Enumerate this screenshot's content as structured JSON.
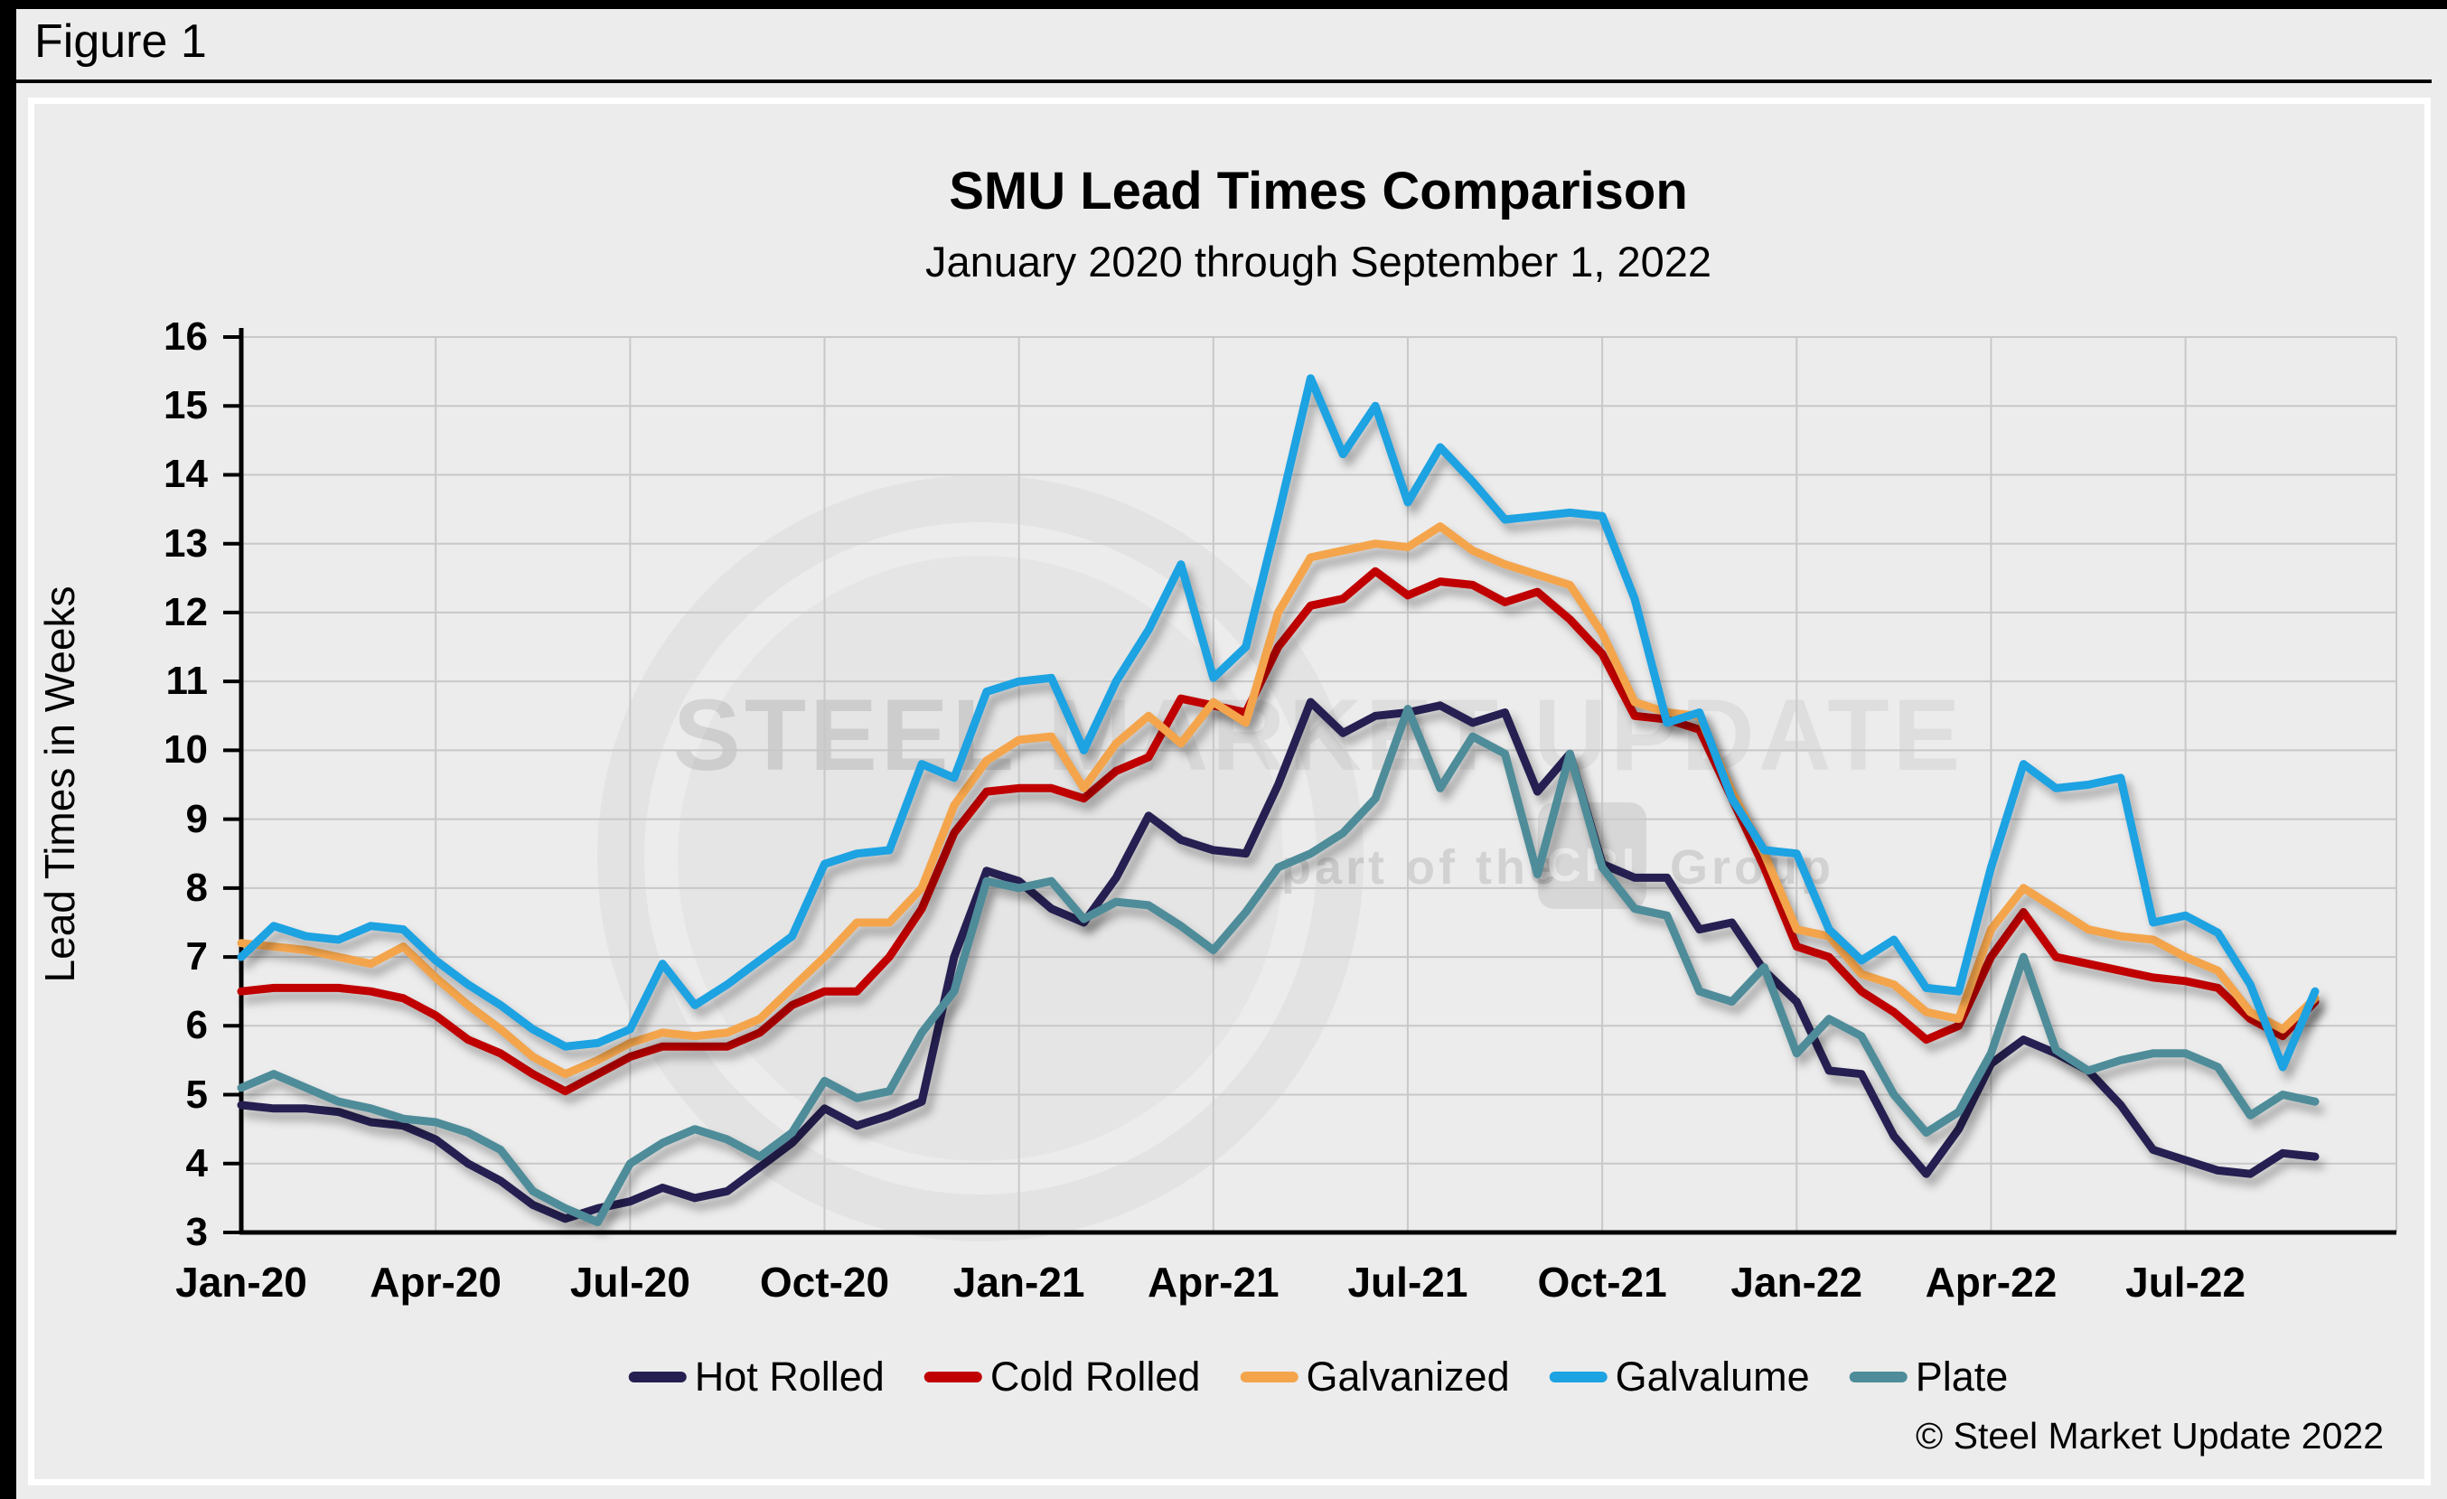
{
  "figure_label": "Figure 1",
  "chart": {
    "title": "SMU Lead Times Comparison",
    "subtitle": "January 2020 through September 1, 2022"
  },
  "y_axis": {
    "label": "Lead Times in Weeks",
    "min": 3,
    "max": 16,
    "step": 1,
    "tick_labels": [
      "3",
      "4",
      "5",
      "6",
      "7",
      "8",
      "9",
      "10",
      "11",
      "12",
      "13",
      "14",
      "15",
      "16"
    ]
  },
  "x_axis": {
    "tick_labels": [
      "Jan-20",
      "Apr-20",
      "Jul-20",
      "Oct-20",
      "Jan-21",
      "Apr-21",
      "Jul-21",
      "Oct-21",
      "Jan-22",
      "Apr-22",
      "Jul-22"
    ]
  },
  "legend": {
    "items": [
      {
        "label": "Hot Rolled",
        "color": "#252051"
      },
      {
        "label": "Cold Rolled",
        "color": "#C00000"
      },
      {
        "label": "Galvanized",
        "color": "#F4A54C"
      },
      {
        "label": "Galvalume",
        "color": "#1DA2E2"
      },
      {
        "label": "Plate",
        "color": "#4E8C99"
      }
    ]
  },
  "watermark": {
    "word1": "STEEL",
    "word2": " MARKET UPDATE",
    "tagline_prefix": "part of the",
    "badge": "CRU",
    "tagline_suffix": "Group"
  },
  "copyright": "© Steel Market Update 2022",
  "colors": {
    "background": "#ECECEC",
    "frame": "#FFFFFF",
    "gridline": "#C8C8C8",
    "axis": "#000000"
  },
  "chart_data": {
    "type": "line",
    "title": "SMU Lead Times Comparison",
    "ylabel": "Lead Times in Weeks",
    "ylim": [
      3,
      16
    ],
    "grid": true,
    "legend_position": "bottom",
    "x": [
      "2020-01-01",
      "2020-01-15",
      "2020-02-01",
      "2020-02-15",
      "2020-03-01",
      "2020-03-15",
      "2020-04-01",
      "2020-04-15",
      "2020-05-01",
      "2020-05-15",
      "2020-06-01",
      "2020-06-15",
      "2020-07-01",
      "2020-07-15",
      "2020-08-01",
      "2020-08-15",
      "2020-09-01",
      "2020-09-15",
      "2020-10-01",
      "2020-10-15",
      "2020-11-01",
      "2020-11-15",
      "2020-12-01",
      "2020-12-15",
      "2021-01-01",
      "2021-01-15",
      "2021-02-01",
      "2021-02-15",
      "2021-03-01",
      "2021-03-15",
      "2021-04-01",
      "2021-04-15",
      "2021-05-01",
      "2021-05-15",
      "2021-06-01",
      "2021-06-15",
      "2021-07-01",
      "2021-07-15",
      "2021-08-01",
      "2021-08-15",
      "2021-09-01",
      "2021-09-15",
      "2021-10-01",
      "2021-10-15",
      "2021-11-01",
      "2021-11-15",
      "2021-12-01",
      "2021-12-15",
      "2022-01-01",
      "2022-01-15",
      "2022-02-01",
      "2022-02-15",
      "2022-03-01",
      "2022-03-15",
      "2022-04-01",
      "2022-04-15",
      "2022-05-01",
      "2022-05-15",
      "2022-06-01",
      "2022-06-15",
      "2022-07-01",
      "2022-07-15",
      "2022-08-01",
      "2022-08-15",
      "2022-09-01"
    ],
    "x_tick_positions": [
      0,
      6,
      12,
      18,
      24,
      30,
      36,
      42,
      48,
      54,
      60
    ],
    "x_tick_labels": [
      "Jan-20",
      "Apr-20",
      "Jul-20",
      "Oct-20",
      "Jan-21",
      "Apr-21",
      "Jul-21",
      "Oct-21",
      "Jan-22",
      "Apr-22",
      "Jul-22"
    ],
    "series": [
      {
        "name": "Hot Rolled",
        "color": "#252051",
        "values": [
          4.85,
          4.8,
          4.8,
          4.75,
          4.6,
          4.55,
          4.35,
          4.0,
          3.75,
          3.4,
          3.2,
          3.35,
          3.45,
          3.65,
          3.5,
          3.6,
          3.95,
          4.3,
          4.8,
          4.55,
          4.7,
          4.9,
          7.0,
          8.25,
          8.1,
          7.7,
          7.5,
          8.15,
          9.05,
          8.7,
          8.55,
          8.5,
          9.5,
          10.7,
          10.25,
          10.5,
          10.55,
          10.65,
          10.4,
          10.55,
          9.4,
          9.95,
          8.35,
          8.15,
          8.15,
          7.4,
          7.5,
          6.8,
          6.35,
          5.35,
          5.3,
          4.4,
          3.85,
          4.5,
          5.45,
          5.8,
          5.6,
          5.35,
          4.85,
          4.2,
          4.05,
          3.9,
          3.85,
          4.15,
          4.1
        ]
      },
      {
        "name": "Cold Rolled",
        "color": "#C00000",
        "values": [
          6.5,
          6.55,
          6.55,
          6.55,
          6.5,
          6.4,
          6.15,
          5.8,
          5.6,
          5.3,
          5.05,
          5.3,
          5.55,
          5.7,
          5.7,
          5.7,
          5.9,
          6.3,
          6.5,
          6.5,
          7.0,
          7.7,
          8.8,
          9.4,
          9.45,
          9.45,
          9.3,
          9.7,
          9.9,
          10.75,
          10.65,
          10.55,
          11.5,
          12.1,
          12.2,
          12.6,
          12.25,
          12.45,
          12.4,
          12.15,
          12.3,
          11.9,
          11.4,
          10.5,
          10.45,
          10.3,
          9.3,
          8.3,
          7.15,
          7.0,
          6.5,
          6.2,
          5.8,
          6.0,
          7.0,
          7.65,
          7.0,
          6.9,
          6.8,
          6.7,
          6.65,
          6.55,
          6.1,
          5.85,
          6.35
        ]
      },
      {
        "name": "Galvanized",
        "color": "#F4A54C",
        "values": [
          7.2,
          7.15,
          7.1,
          7.0,
          6.9,
          7.15,
          6.7,
          6.3,
          5.95,
          5.55,
          5.3,
          5.5,
          5.75,
          5.9,
          5.85,
          5.9,
          6.1,
          6.55,
          7.0,
          7.5,
          7.5,
          8.0,
          9.2,
          9.85,
          10.15,
          10.2,
          9.45,
          10.1,
          10.5,
          10.1,
          10.7,
          10.4,
          12.0,
          12.8,
          12.9,
          13.0,
          12.95,
          13.25,
          12.9,
          12.7,
          12.55,
          12.4,
          11.7,
          10.7,
          10.55,
          10.5,
          9.4,
          8.5,
          7.4,
          7.3,
          6.75,
          6.6,
          6.2,
          6.1,
          7.4,
          8.0,
          7.7,
          7.4,
          7.3,
          7.25,
          7.0,
          6.8,
          6.2,
          5.95,
          6.4
        ]
      },
      {
        "name": "Galvalume",
        "color": "#1DA2E2",
        "values": [
          7.0,
          7.45,
          7.3,
          7.25,
          7.45,
          7.4,
          6.95,
          6.6,
          6.3,
          5.95,
          5.7,
          5.75,
          5.95,
          6.9,
          6.3,
          6.6,
          6.95,
          7.3,
          8.35,
          8.5,
          8.55,
          9.8,
          9.6,
          10.85,
          11.0,
          11.05,
          10.0,
          11.0,
          11.75,
          12.7,
          11.05,
          11.5,
          13.4,
          15.4,
          14.3,
          15.0,
          13.6,
          14.4,
          13.9,
          13.35,
          13.4,
          13.45,
          13.4,
          12.2,
          10.4,
          10.55,
          9.3,
          8.55,
          8.5,
          7.4,
          6.95,
          7.25,
          6.55,
          6.5,
          8.3,
          9.8,
          9.45,
          9.5,
          9.6,
          7.5,
          7.6,
          7.35,
          6.6,
          5.4,
          6.5
        ]
      },
      {
        "name": "Plate",
        "color": "#4E8C99",
        "values": [
          5.1,
          5.3,
          5.1,
          4.9,
          4.8,
          4.65,
          4.6,
          4.45,
          4.2,
          3.6,
          3.35,
          3.15,
          4.0,
          4.3,
          4.5,
          4.35,
          4.1,
          4.45,
          5.2,
          4.95,
          5.05,
          5.9,
          6.5,
          8.1,
          8.0,
          8.1,
          7.55,
          7.8,
          7.75,
          7.45,
          7.1,
          7.65,
          8.3,
          8.5,
          8.8,
          9.3,
          10.6,
          9.45,
          10.2,
          9.95,
          8.2,
          9.95,
          8.3,
          7.7,
          7.6,
          6.5,
          6.35,
          6.85,
          5.6,
          6.1,
          5.85,
          5.0,
          4.45,
          4.75,
          5.6,
          7.0,
          5.65,
          5.35,
          5.5,
          5.6,
          5.6,
          5.4,
          4.7,
          5.0,
          4.9
        ]
      }
    ]
  }
}
